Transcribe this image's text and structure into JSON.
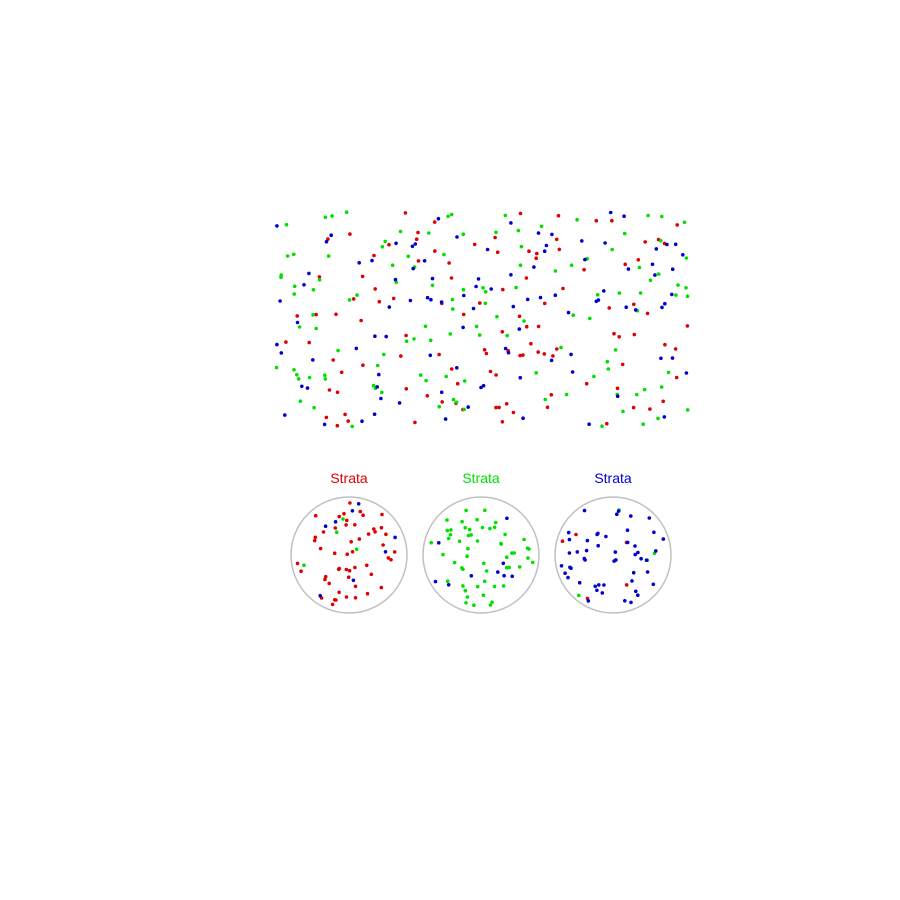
{
  "colors": {
    "red": "#e00000",
    "green": "#00e000",
    "blue": "#0000d0",
    "circle": "#c0c0c0"
  },
  "diagram": {
    "population_counts": {
      "red": 110,
      "green": 120,
      "blue": 100
    },
    "strata": [
      {
        "label": "Strata",
        "color": "red",
        "counts": {
          "red": 52,
          "green": 4,
          "blue": 8
        }
      },
      {
        "label": "Strata",
        "color": "green",
        "counts": {
          "red": 0,
          "green": 55,
          "blue": 9
        }
      },
      {
        "label": "Strata",
        "color": "blue",
        "counts": {
          "red": 5,
          "green": 4,
          "blue": 50
        }
      }
    ]
  }
}
